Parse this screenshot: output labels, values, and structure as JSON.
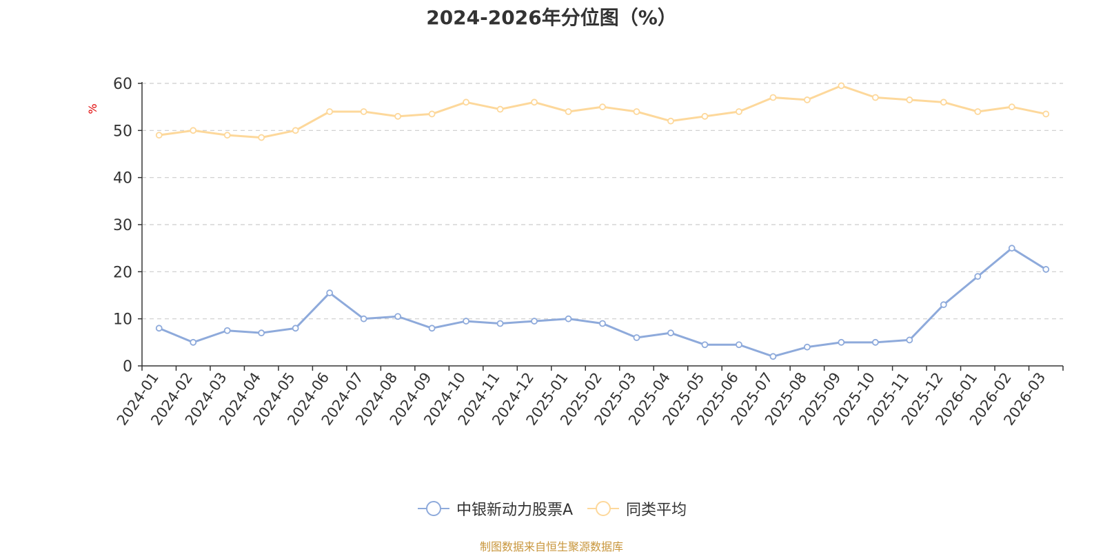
{
  "chart_data": {
    "type": "line",
    "title": "2024-2026年分位图（%）",
    "ylabel": "%",
    "ylim": [
      0,
      60
    ],
    "yticks": [
      0,
      10,
      20,
      30,
      40,
      50,
      60
    ],
    "grid": true,
    "legend_position": "bottom",
    "categories": [
      "2024-01",
      "2024-02",
      "2024-03",
      "2024-04",
      "2024-05",
      "2024-06",
      "2024-07",
      "2024-08",
      "2024-09",
      "2024-10",
      "2024-11",
      "2024-12",
      "2025-01",
      "2025-02",
      "2025-03",
      "2025-04",
      "2025-05",
      "2025-06",
      "2025-07",
      "2025-08",
      "2025-09",
      "2025-10",
      "2025-11",
      "2025-12",
      "2026-01",
      "2026-02",
      "2026-03"
    ],
    "series": [
      {
        "name": "中银新动力股票A",
        "color": "#8eaadb",
        "values": [
          8,
          5,
          7.5,
          7,
          8,
          15.5,
          10,
          10.5,
          8,
          9.5,
          9,
          9.5,
          10,
          9,
          6,
          7,
          4.5,
          4.5,
          2,
          4,
          5,
          5,
          5.5,
          13,
          19,
          25,
          20.5
        ]
      },
      {
        "name": "同类平均",
        "color": "#fdd89b",
        "values": [
          49,
          50,
          49,
          48.5,
          50,
          54,
          54,
          53,
          53.5,
          56,
          54.5,
          56,
          54,
          55,
          54,
          52,
          53,
          54,
          57,
          56.5,
          59.5,
          57,
          56.5,
          56,
          54,
          55,
          53.5
        ]
      }
    ],
    "source": "制图数据来自恒生聚源数据库"
  }
}
